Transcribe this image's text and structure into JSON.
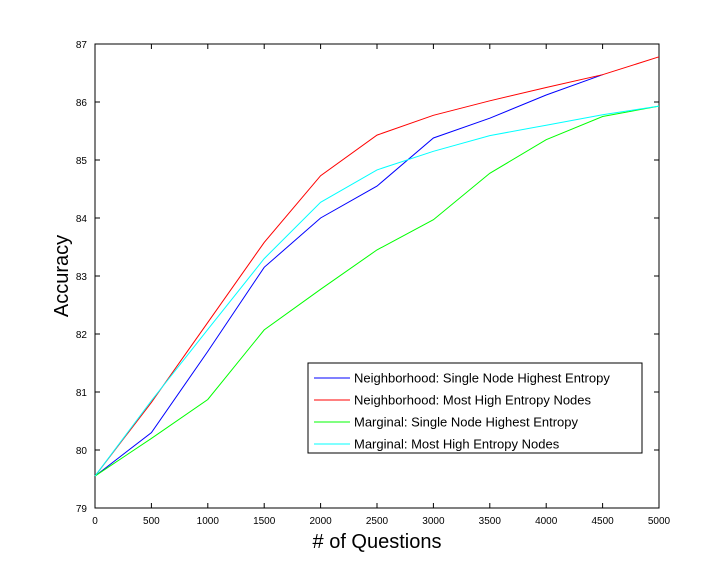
{
  "chart_data": {
    "type": "line",
    "title": "",
    "xlabel": "# of Questions",
    "ylabel": "Accuracy",
    "xlim": [
      0,
      5000
    ],
    "ylim": [
      79,
      87
    ],
    "xticks": [
      0,
      500,
      1000,
      1500,
      2000,
      2500,
      3000,
      3500,
      4000,
      4500,
      5000
    ],
    "yticks": [
      79,
      80,
      81,
      82,
      83,
      84,
      85,
      86,
      87
    ],
    "grid": false,
    "legend_position": "lower-right",
    "series": [
      {
        "name": "Neighborhood: Single Node Highest Entropy",
        "color": "#0000ff",
        "x": [
          0,
          500,
          1000,
          1500,
          2000,
          2500,
          3000,
          3500,
          4000,
          4500
        ],
        "y": [
          79.55,
          80.3,
          81.7,
          83.15,
          84.0,
          84.55,
          85.38,
          85.72,
          86.12,
          86.47
        ]
      },
      {
        "name": "Neighborhood: Most High Entropy Nodes",
        "color": "#ff0000",
        "x": [
          0,
          500,
          1000,
          1500,
          2000,
          2500,
          3000,
          3500,
          4000,
          4500,
          5000
        ],
        "y": [
          79.55,
          80.82,
          82.2,
          83.58,
          84.73,
          85.43,
          85.77,
          86.02,
          86.25,
          86.47,
          86.78
        ]
      },
      {
        "name": "Marginal: Single Node Highest Entropy",
        "color": "#00ff00",
        "x": [
          0,
          500,
          1000,
          1500,
          2000,
          2500,
          3000,
          3500,
          4000,
          4500,
          5000
        ],
        "y": [
          79.55,
          80.2,
          80.87,
          82.07,
          82.77,
          83.45,
          83.97,
          84.77,
          85.35,
          85.75,
          85.93
        ]
      },
      {
        "name": "Marginal: Most High Entropy Nodes",
        "color": "#00ffff",
        "x": [
          0,
          500,
          1000,
          1500,
          2000,
          2500,
          3000,
          3500,
          4000,
          4500,
          5000
        ],
        "y": [
          79.55,
          80.85,
          82.08,
          83.3,
          84.27,
          84.83,
          85.15,
          85.42,
          85.6,
          85.78,
          85.93
        ]
      }
    ]
  }
}
